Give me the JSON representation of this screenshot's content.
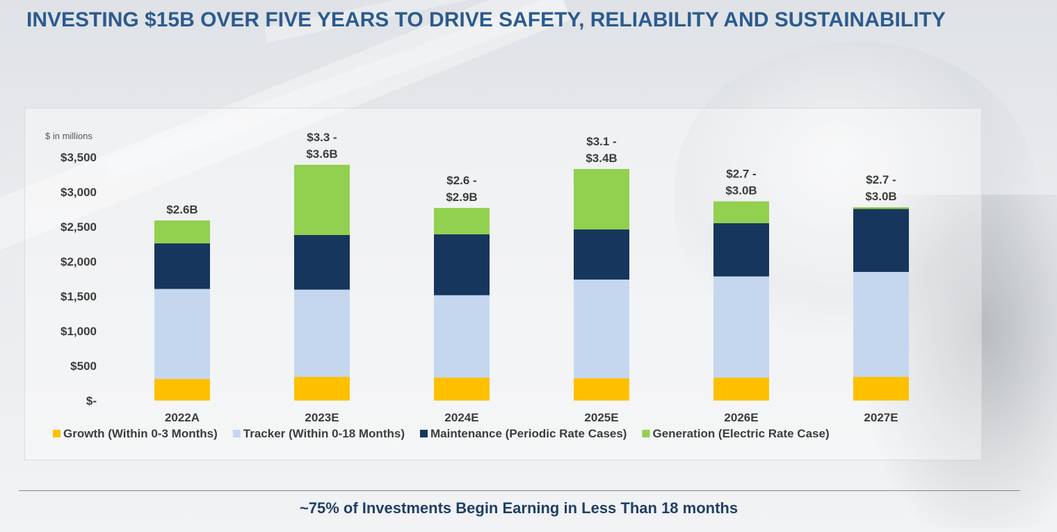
{
  "title": "INVESTING $15B OVER FIVE YEARS TO DRIVE SAFETY, RELIABILITY AND SUSTAINABILITY",
  "footer": "~75% of Investments Begin Earning in Less Than 18 months",
  "chart_data": {
    "type": "bar",
    "stacked": true,
    "title": "",
    "unit_label": "$ in millions",
    "xlabel": "",
    "ylabel": "",
    "ylim": [
      0,
      3500
    ],
    "yticks": [
      0,
      500,
      1000,
      1500,
      2000,
      2500,
      3000,
      3500
    ],
    "ytick_labels": [
      "$-",
      "$500",
      "$1,000",
      "$1,500",
      "$2,000",
      "$2,500",
      "$3,000",
      "$3,500"
    ],
    "categories": [
      "2022A",
      "2023E",
      "2024E",
      "2025E",
      "2026E",
      "2027E"
    ],
    "series": [
      {
        "name": "Growth (Within 0-3 Months)",
        "color": "#ffc000",
        "values": [
          310,
          340,
          330,
          320,
          330,
          340
        ]
      },
      {
        "name": "Tracker (Within 0-18 Months)",
        "color": "#c5d7ef",
        "values": [
          1295,
          1255,
          1185,
          1420,
          1455,
          1510
        ]
      },
      {
        "name": "Maintenance (Periodic Rate Cases)",
        "color": "#17365d",
        "values": [
          655,
          785,
          875,
          720,
          765,
          905
        ]
      },
      {
        "name": "Generation (Electric Rate Case)",
        "color": "#92d050",
        "values": [
          330,
          1010,
          380,
          870,
          315,
          25
        ]
      }
    ],
    "total_labels": [
      [
        "$2.6B"
      ],
      [
        "$3.3 -",
        "$3.6B"
      ],
      [
        "$2.6 -",
        "$2.9B"
      ],
      [
        "$3.1 -",
        "$3.4B"
      ],
      [
        "$2.7 -",
        "$3.0B"
      ],
      [
        "$2.7 -",
        "$3.0B"
      ]
    ],
    "legend_position": "bottom",
    "grid": false
  }
}
